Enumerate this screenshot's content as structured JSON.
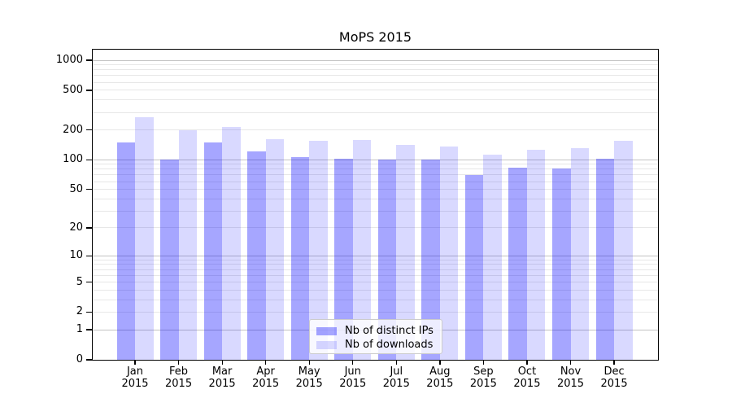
{
  "title": "MoPS 2015",
  "legend": {
    "position": "lower center",
    "items": [
      {
        "label": "Nb of distinct IPs",
        "color": "#a6a6ff"
      },
      {
        "label": "Nb of downloads",
        "color": "#d9d9ff"
      }
    ]
  },
  "chart_data": {
    "type": "bar",
    "title": "MoPS 2015",
    "xlabel": "",
    "ylabel": "",
    "yscale": "log-like (log10(value+1))",
    "ylim": [
      0,
      1300
    ],
    "grid": true,
    "legend_position": "lower center",
    "categories": [
      "Jan 2015",
      "Feb 2015",
      "Mar 2015",
      "Apr 2015",
      "May 2015",
      "Jun 2015",
      "Jul 2015",
      "Aug 2015",
      "Sep 2015",
      "Oct 2015",
      "Nov 2015",
      "Dec 2015"
    ],
    "series": [
      {
        "name": "Nb of distinct IPs",
        "color_hex": "#a6a6ff",
        "color_css": "rgba(0,0,255,0.35)",
        "values": [
          150,
          100,
          150,
          122,
          107,
          103,
          100,
          100,
          70,
          83,
          81,
          103
        ]
      },
      {
        "name": "Nb of downloads",
        "color_hex": "#d9d9ff",
        "color_css": "rgba(0,0,255,0.15)",
        "values": [
          267,
          200,
          212,
          160,
          154,
          158,
          140,
          136,
          112,
          125,
          130,
          154
        ]
      }
    ],
    "y_ticks": [
      0,
      1,
      2,
      5,
      10,
      20,
      50,
      100,
      200,
      500,
      1000
    ],
    "gridlines": {
      "major": [
        1,
        10,
        100,
        1000
      ],
      "minor": [
        2,
        3,
        4,
        5,
        6,
        7,
        8,
        9,
        20,
        30,
        40,
        50,
        60,
        70,
        80,
        90,
        200,
        300,
        400,
        500,
        600,
        700,
        800,
        900
      ]
    }
  }
}
